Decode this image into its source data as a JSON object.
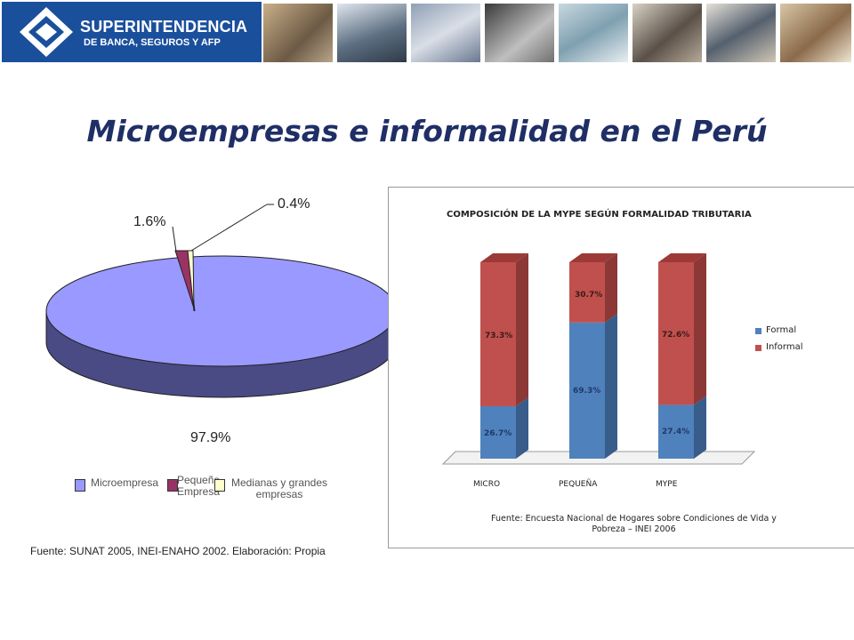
{
  "header": {
    "logo_line1": "SUPERINTENDENCIA",
    "logo_line2": "DE BANCA, SEGUROS Y AFP",
    "logo_color": "#1a4f9c"
  },
  "page_title": "Microempresas e informalidad en el Perú",
  "chart_data": [
    {
      "type": "pie",
      "labels": [
        "Microempresa",
        "Pequeña Empresa",
        "Medianas y grandes empresas"
      ],
      "values": [
        97.9,
        1.6,
        0.4
      ],
      "data_labels": [
        "97.9%",
        "1.6%",
        "0.4%"
      ],
      "colors": [
        "#9999ff",
        "#993366",
        "#ffffcc"
      ],
      "legend": "bottom",
      "legend_labels": [
        "Microempresa",
        "Pequeña\nEmpresa",
        "Medianas y grandes\nempresas"
      ],
      "source": "Fuente: SUNAT 2005, INEI-ENAHO 2002. Elaboración: Propia"
    },
    {
      "type": "bar",
      "stacked": true,
      "title": "COMPOSICIÓN DE LA MYPE SEGÚN FORMALIDAD TRIBUTARIA",
      "categories": [
        "MICRO",
        "PEQUEÑA",
        "MYPE"
      ],
      "series": [
        {
          "name": "Formal",
          "values": [
            26.7,
            69.3,
            27.4
          ],
          "labels": [
            "26.7%",
            "69.3%",
            "27.4%"
          ],
          "color": "#4f81bd"
        },
        {
          "name": "Informal",
          "values": [
            73.3,
            30.7,
            72.6
          ],
          "labels": [
            "73.3%",
            "30.7%",
            "72.6%"
          ],
          "color": "#c0504d"
        }
      ],
      "ylim": [
        0,
        100
      ],
      "legend": "right",
      "source": "Fuente: Encuesta Nacional de Hogares sobre Condiciones de Vida y Pobreza – INEI 2006"
    }
  ]
}
